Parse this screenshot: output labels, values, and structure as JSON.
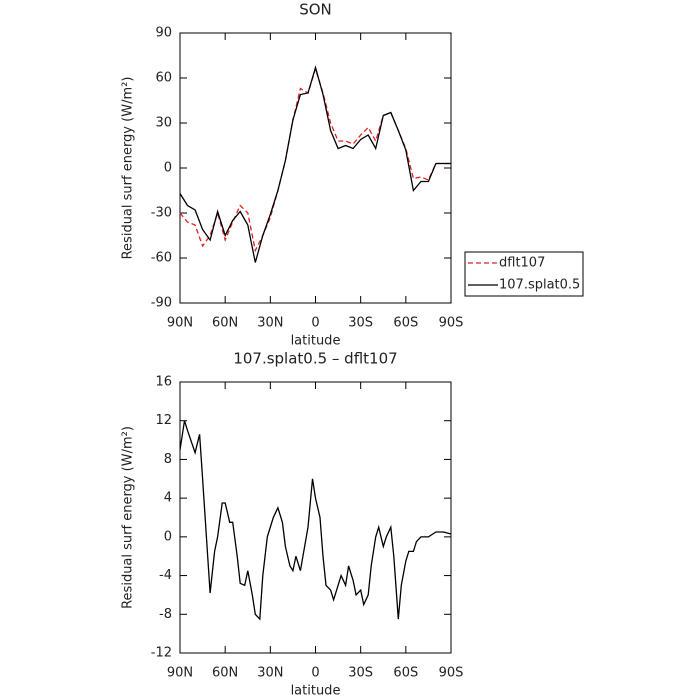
{
  "chart_data": [
    {
      "type": "line",
      "title": "SON",
      "xlabel": "latitude",
      "ylabel": "Residual surf energy (W/m²)",
      "x": [
        90,
        85,
        80,
        75,
        70,
        65,
        60,
        55,
        50,
        45,
        40,
        35,
        30,
        25,
        20,
        15,
        10,
        5,
        0,
        -5,
        -10,
        -15,
        -20,
        -25,
        -30,
        -35,
        -40,
        -45,
        -50,
        -55,
        -60,
        -65,
        -70,
        -75,
        -80,
        -85,
        -90
      ],
      "series": [
        {
          "name": "dflt107",
          "color": "#e02020",
          "dash": true,
          "values": [
            -30,
            -36,
            -38,
            -52,
            -45,
            -30,
            -48,
            -36,
            -25,
            -30,
            -55,
            -45,
            -33,
            -15,
            5,
            32,
            53,
            50,
            66,
            50,
            30,
            18,
            18,
            16,
            22,
            27,
            18,
            35,
            37,
            25,
            13,
            -7,
            -6,
            -8,
            3,
            3,
            3
          ]
        },
        {
          "name": "107.splat0.5",
          "color": "#000000",
          "dash": false,
          "values": [
            -17,
            -25,
            -28,
            -41,
            -48,
            -29,
            -45,
            -35,
            -29,
            -38,
            -63,
            -45,
            -31,
            -15,
            5,
            32,
            49,
            50,
            67,
            49,
            25,
            13,
            15,
            13,
            19,
            22,
            13,
            35,
            37,
            25,
            12,
            -15,
            -9,
            -9,
            3,
            3,
            3
          ]
        }
      ],
      "xlim": [
        90,
        -90
      ],
      "xticks": [
        {
          "value": 90,
          "label": "90N"
        },
        {
          "value": 60,
          "label": "60N"
        },
        {
          "value": 30,
          "label": "30N"
        },
        0,
        {
          "value": -30,
          "label": "30S"
        },
        {
          "value": -60,
          "label": "60S"
        },
        {
          "value": -90,
          "label": "90S"
        }
      ],
      "ylim": [
        -90,
        90
      ],
      "yticks": [
        -90,
        -60,
        -30,
        0,
        30,
        60,
        90
      ],
      "legend": "right"
    },
    {
      "type": "line",
      "title": "107.splat0.5 – dflt107",
      "xlabel": "latitude",
      "ylabel": "Residual surf energy (W/m²)",
      "x": [
        90,
        87,
        85,
        80,
        77,
        75,
        70,
        67,
        65,
        62,
        60,
        57,
        55,
        52,
        50,
        47,
        45,
        42,
        40,
        37,
        35,
        32,
        28,
        25,
        22,
        20,
        17,
        15,
        13,
        10,
        5,
        2,
        0,
        -3,
        -5,
        -7,
        -10,
        -12,
        -15,
        -17,
        -20,
        -22,
        -25,
        -27,
        -30,
        -32,
        -35,
        -37,
        -40,
        -42,
        -45,
        -47,
        -50,
        -52,
        -55,
        -57,
        -60,
        -62,
        -65,
        -67,
        -70,
        -75,
        -80,
        -85,
        -90
      ],
      "color": "#000000",
      "values": [
        9,
        12,
        11,
        8.7,
        10.6,
        6,
        -5.8,
        -1.5,
        0,
        3.5,
        3.5,
        1.5,
        1.5,
        -2,
        -4.8,
        -5,
        -3.5,
        -6,
        -8,
        -8.5,
        -4,
        0,
        2,
        3,
        1.5,
        -1,
        -3,
        -3.5,
        -2,
        -3.5,
        1,
        6,
        4,
        2,
        -2,
        -5,
        -5.5,
        -6.5,
        -5,
        -4,
        -5,
        -3,
        -4.5,
        -6,
        -5.5,
        -7,
        -6,
        -3,
        0,
        1,
        -1,
        0,
        1,
        -2,
        -8.5,
        -5,
        -2.5,
        -1.5,
        -1.5,
        -0.5,
        0,
        0,
        0.5,
        0.5,
        0.3
      ],
      "xlim": [
        90,
        -90
      ],
      "xticks": [
        {
          "value": 90,
          "label": "90N"
        },
        {
          "value": 60,
          "label": "60N"
        },
        {
          "value": 30,
          "label": "30N"
        },
        0,
        {
          "value": -30,
          "label": "30S"
        },
        {
          "value": -60,
          "label": "60S"
        },
        {
          "value": -90,
          "label": "90S"
        }
      ],
      "ylim": [
        -12,
        16
      ],
      "yticks": [
        -12,
        -8,
        -4,
        0,
        4,
        8,
        12,
        16
      ]
    }
  ]
}
